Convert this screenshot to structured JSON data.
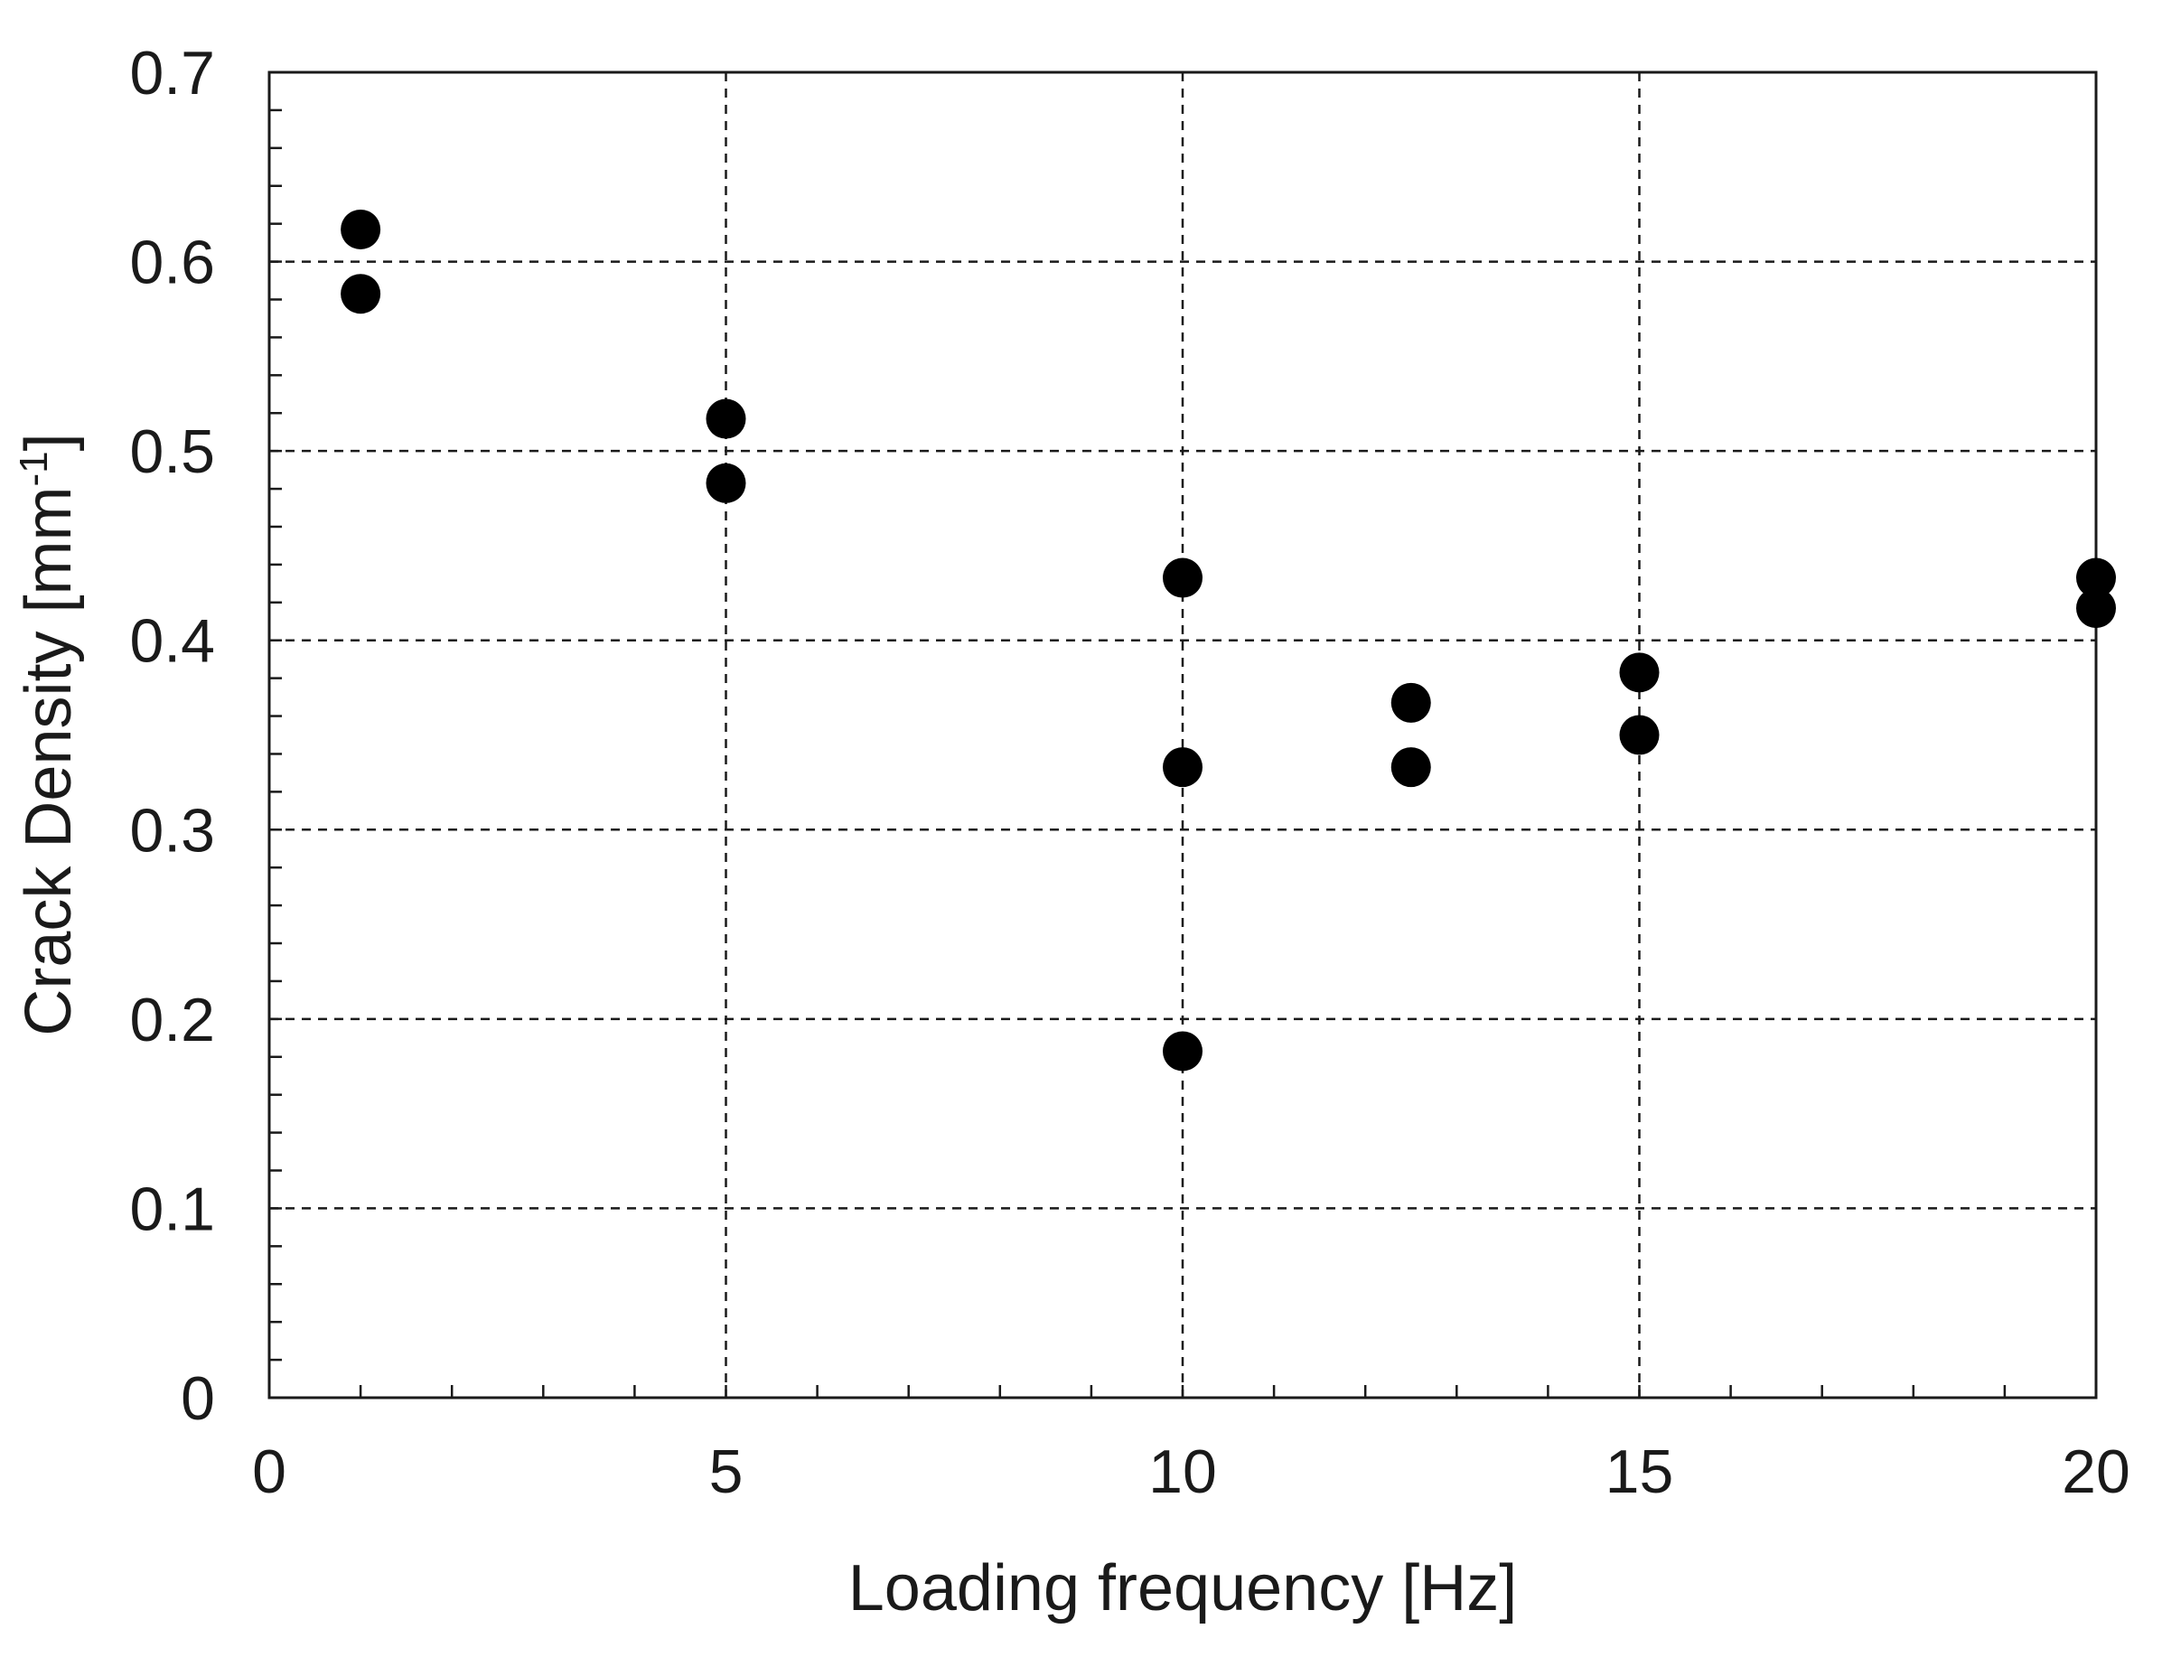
{
  "chart_data": {
    "type": "scatter",
    "title": "",
    "xlabel": "Loading frequency [Hz]",
    "ylabel_main": "Crack Density [mm",
    "ylabel_sup": "-1",
    "ylabel_end": "]",
    "xlim": [
      0,
      20
    ],
    "ylim": [
      0,
      0.7
    ],
    "x_ticks": [
      0,
      5,
      10,
      15,
      20
    ],
    "x_tick_labels": [
      "0",
      "5",
      "10",
      "15",
      "20"
    ],
    "x_minor_step": 1,
    "y_ticks": [
      0,
      0.1,
      0.2,
      0.3,
      0.4,
      0.5,
      0.6,
      0.7
    ],
    "y_tick_labels": [
      "0",
      "0.1",
      "0.2",
      "0.3",
      "0.4",
      "0.5",
      "0.6",
      "0.7"
    ],
    "y_minor_step": 0.02,
    "grid": true,
    "grid_style": "dashed",
    "marker_color": "#000000",
    "series": [
      {
        "points": [
          {
            "x": 1,
            "y": 0.617
          },
          {
            "x": 1,
            "y": 0.583
          },
          {
            "x": 5,
            "y": 0.517
          },
          {
            "x": 5,
            "y": 0.483
          },
          {
            "x": 10,
            "y": 0.433
          },
          {
            "x": 10,
            "y": 0.333
          },
          {
            "x": 10,
            "y": 0.183
          },
          {
            "x": 12.5,
            "y": 0.367
          },
          {
            "x": 12.5,
            "y": 0.333
          },
          {
            "x": 15,
            "y": 0.383
          },
          {
            "x": 15,
            "y": 0.35
          },
          {
            "x": 20,
            "y": 0.433
          },
          {
            "x": 20,
            "y": 0.417
          }
        ]
      }
    ]
  }
}
